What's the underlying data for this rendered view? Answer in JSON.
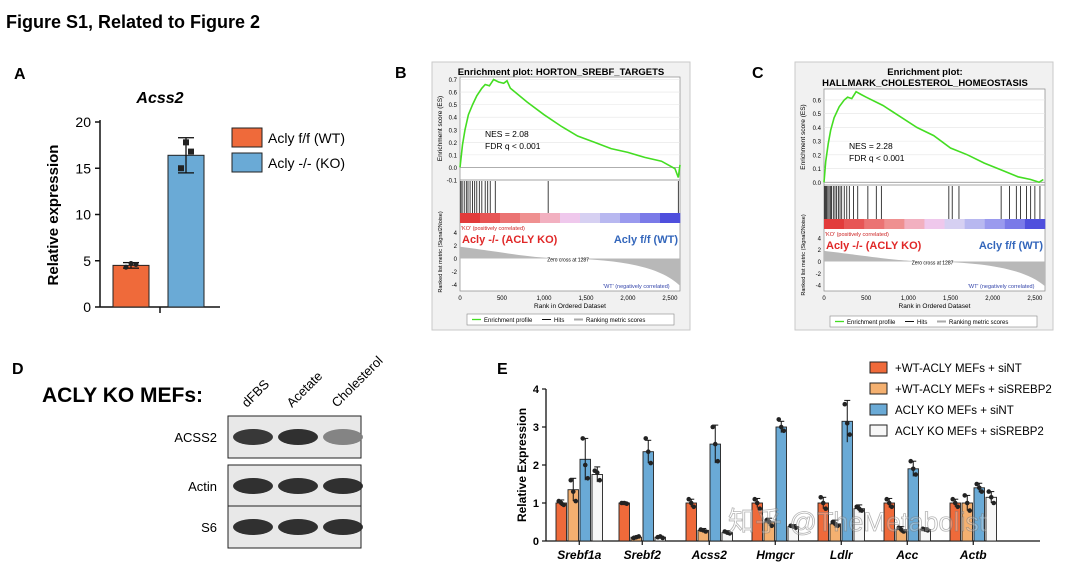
{
  "figure_title": "Figure S1, Related to Figure 2",
  "colors": {
    "wt": "#ef6a3a",
    "ko": "#6aaad6",
    "gsea_line": "#44dd22",
    "orange_light": "#f4b070",
    "white_bar": "#f7f7f7",
    "dark": "#222222",
    "band_red": "#e23b3b",
    "band_blue": "#5555dd"
  },
  "panels": {
    "A": {
      "label": "A"
    },
    "B": {
      "label": "B",
      "title_line1": "Enrichment plot: HORTON_SREBF_TARGETS",
      "ylabel_es": "Enrichment score (ES)",
      "yticks_es": [
        "0.7",
        "0.6",
        "0.5",
        "0.4",
        "0.3",
        "0.2",
        "0.1",
        "0.0",
        "-0.1"
      ],
      "nes": "NES = 2.08",
      "fdr": "FDR q < 0.001",
      "ko_text": "Acly -/- (ACLY KO)",
      "wt_text": "Acly f/f (WT)",
      "pos_corr": "'KO' (positively correlated)",
      "neg_corr": "'WT' (negatively correlated)",
      "zero_cross": "Zero cross at 1287",
      "ylabel_rank": "Ranked list metric (Signal2Noise)",
      "yticks_rank": [
        "4",
        "2",
        "0",
        "-2",
        "-4"
      ],
      "xticks": [
        "0",
        "500",
        "1,000",
        "1,500",
        "2,000",
        "2,500"
      ],
      "xlabel": "Rank in Ordered Dataset",
      "legend_profile": "Enrichment profile",
      "legend_hits": "Hits",
      "legend_metric": "Ranking metric scores",
      "es_curve": [
        [
          0,
          0.0
        ],
        [
          30,
          0.18
        ],
        [
          60,
          0.3
        ],
        [
          100,
          0.42
        ],
        [
          150,
          0.5
        ],
        [
          200,
          0.57
        ],
        [
          260,
          0.63
        ],
        [
          300,
          0.66
        ],
        [
          350,
          0.65
        ],
        [
          400,
          0.7
        ],
        [
          460,
          0.68
        ],
        [
          520,
          0.67
        ],
        [
          560,
          0.69
        ],
        [
          600,
          0.63
        ],
        [
          800,
          0.52
        ],
        [
          1000,
          0.42
        ],
        [
          1200,
          0.33
        ],
        [
          1400,
          0.25
        ],
        [
          1600,
          0.2
        ],
        [
          1800,
          0.15
        ],
        [
          2000,
          0.12
        ],
        [
          2200,
          0.08
        ],
        [
          2400,
          0.05
        ],
        [
          2560,
          -0.01
        ],
        [
          2600,
          -0.08
        ],
        [
          2620,
          0.02
        ]
      ],
      "hits": [
        10,
        25,
        50,
        75,
        95,
        120,
        150,
        175,
        200,
        230,
        260,
        300,
        330,
        360,
        420,
        1050,
        2600
      ]
    },
    "C": {
      "label": "C",
      "title_line1": "Enrichment plot:",
      "title_line2": "HALLMARK_CHOLESTEROL_HOMEOSTASIS",
      "ylabel_es": "Enrichment score (ES)",
      "yticks_es": [
        "0.6",
        "0.5",
        "0.4",
        "0.3",
        "0.2",
        "0.1",
        "0.0"
      ],
      "nes": "NES = 2.28",
      "fdr": "FDR q < 0.001",
      "ko_text": "Acly -/- (ACLY KO)",
      "wt_text": "Acly f/f (WT)",
      "pos_corr": "'KO' (positively correlated)",
      "neg_corr": "'WT' (negatively correlated)",
      "zero_cross": "Zero cross at 1287",
      "ylabel_rank": "Ranked list metric (Signal2Noise)",
      "yticks_rank": [
        "4",
        "2",
        "0",
        "-2",
        "-4"
      ],
      "xticks": [
        "0",
        "500",
        "1,000",
        "1,500",
        "2,000",
        "2,500"
      ],
      "xlabel": "Rank in Ordered Dataset",
      "legend_profile": "Enrichment profile",
      "legend_hits": "Hits",
      "legend_metric": "Ranking metric scores",
      "es_curve": [
        [
          0,
          0.0
        ],
        [
          20,
          0.15
        ],
        [
          50,
          0.28
        ],
        [
          80,
          0.38
        ],
        [
          120,
          0.47
        ],
        [
          180,
          0.55
        ],
        [
          240,
          0.6
        ],
        [
          280,
          0.62
        ],
        [
          330,
          0.61
        ],
        [
          380,
          0.66
        ],
        [
          440,
          0.64
        ],
        [
          500,
          0.62
        ],
        [
          700,
          0.56
        ],
        [
          900,
          0.48
        ],
        [
          1100,
          0.4
        ],
        [
          1300,
          0.34
        ],
        [
          1500,
          0.25
        ],
        [
          1700,
          0.2
        ],
        [
          1900,
          0.14
        ],
        [
          2100,
          0.09
        ],
        [
          2300,
          0.04
        ],
        [
          2450,
          0.02
        ],
        [
          2550,
          0.0
        ],
        [
          2600,
          0.02
        ]
      ],
      "hits": [
        5,
        18,
        30,
        45,
        60,
        75,
        90,
        110,
        130,
        150,
        170,
        190,
        210,
        240,
        270,
        300,
        350,
        400,
        520,
        620,
        680,
        1480,
        1520,
        1600,
        2100,
        2200,
        2280,
        2330,
        2400,
        2450,
        2500,
        2560
      ]
    },
    "D": {
      "label": "D",
      "title": "ACLY KO MEFs:",
      "lanes": [
        "dFBS",
        "Acetate",
        "Cholesterol"
      ],
      "blots": [
        "ACSS2",
        "Actin",
        "S6"
      ],
      "intensity": {
        "ACSS2": [
          0.9,
          0.95,
          0.4
        ],
        "Actin": [
          0.95,
          0.95,
          0.95
        ],
        "S6": [
          0.95,
          0.95,
          0.95
        ]
      }
    },
    "E": {
      "label": "E"
    }
  },
  "watermark": "知乎 @TheMetabolist",
  "chart_data": [
    {
      "panel": "A",
      "type": "bar",
      "title": "Acss2",
      "ylabel": "Relative expression",
      "ylim": [
        0,
        20
      ],
      "yticks": [
        "0",
        "5",
        "10",
        "15",
        "20"
      ],
      "categories": [
        "Acly f/f (WT)",
        "Acly -/- (KO)"
      ],
      "values": [
        4.5,
        16.4
      ],
      "errors": [
        0.3,
        1.9
      ],
      "points": [
        [
          4.3,
          4.6,
          4.7
        ],
        [
          15.0,
          16.8,
          17.8
        ]
      ],
      "legend": [
        "Acly f/f (WT)",
        "Acly -/- (KO)"
      ]
    },
    {
      "panel": "E",
      "type": "bar",
      "title": "",
      "ylabel": "Relative Expression",
      "ylim": [
        0,
        4
      ],
      "yticks": [
        "0",
        "1",
        "2",
        "3",
        "4"
      ],
      "categories": [
        "Srebf1a",
        "Srebf2",
        "Acss2",
        "Hmgcr",
        "Ldlr",
        "Acc",
        "Actb"
      ],
      "series": [
        {
          "name": "+WT-ACLY MEFs + siNT",
          "values": [
            1.0,
            1.0,
            1.0,
            1.0,
            1.0,
            1.0,
            1.0
          ],
          "errors": [
            0.08,
            0.03,
            0.1,
            0.12,
            0.15,
            0.12,
            0.1
          ]
        },
        {
          "name": "+WT-ACLY MEFs + siSREBP2",
          "values": [
            1.35,
            0.1,
            0.28,
            0.5,
            0.45,
            0.3,
            1.0
          ],
          "errors": [
            0.3,
            0.03,
            0.05,
            0.1,
            0.1,
            0.08,
            0.2
          ]
        },
        {
          "name": "ACLY KO MEFs + siNT",
          "values": [
            2.15,
            2.35,
            2.55,
            3.0,
            3.15,
            1.9,
            1.4
          ],
          "errors": [
            0.55,
            0.3,
            0.5,
            0.15,
            0.55,
            0.2,
            0.12
          ]
        },
        {
          "name": "ACLY KO MEFs + siSREBP2",
          "values": [
            1.75,
            0.1,
            0.22,
            0.38,
            0.85,
            0.3,
            1.15
          ],
          "errors": [
            0.2,
            0.03,
            0.05,
            0.05,
            0.1,
            0.05,
            0.15
          ]
        }
      ],
      "points": [
        [
          [
            1.05,
            0.95,
            1.0
          ],
          [
            1.6,
            1.05,
            1.3
          ],
          [
            2.7,
            1.65,
            2.0
          ],
          [
            1.85,
            1.6,
            1.8
          ]
        ],
        [
          [
            1.0,
            0.98,
            1.0
          ],
          [
            0.08,
            0.12,
            0.1
          ],
          [
            2.7,
            2.05,
            2.35
          ],
          [
            0.1,
            0.08,
            0.12
          ]
        ],
        [
          [
            1.1,
            0.9,
            1.0
          ],
          [
            0.3,
            0.25,
            0.28
          ],
          [
            3.0,
            2.1,
            2.55
          ],
          [
            0.25,
            0.2,
            0.22
          ]
        ],
        [
          [
            1.1,
            0.85,
            1.0
          ],
          [
            0.55,
            0.4,
            0.5
          ],
          [
            3.2,
            2.9,
            3.0
          ],
          [
            0.4,
            0.35,
            0.38
          ]
        ],
        [
          [
            1.15,
            0.85,
            1.0
          ],
          [
            0.5,
            0.4,
            0.45
          ],
          [
            3.6,
            2.8,
            3.1
          ],
          [
            0.9,
            0.8,
            0.85
          ]
        ],
        [
          [
            1.1,
            0.9,
            1.0
          ],
          [
            0.35,
            0.25,
            0.3
          ],
          [
            2.1,
            1.75,
            1.9
          ],
          [
            0.32,
            0.28,
            0.3
          ]
        ],
        [
          [
            1.1,
            0.9,
            1.0
          ],
          [
            1.2,
            0.8,
            1.0
          ],
          [
            1.5,
            1.3,
            1.4
          ],
          [
            1.3,
            1.0,
            1.15
          ]
        ]
      ],
      "legend_placement": "top-right"
    }
  ]
}
